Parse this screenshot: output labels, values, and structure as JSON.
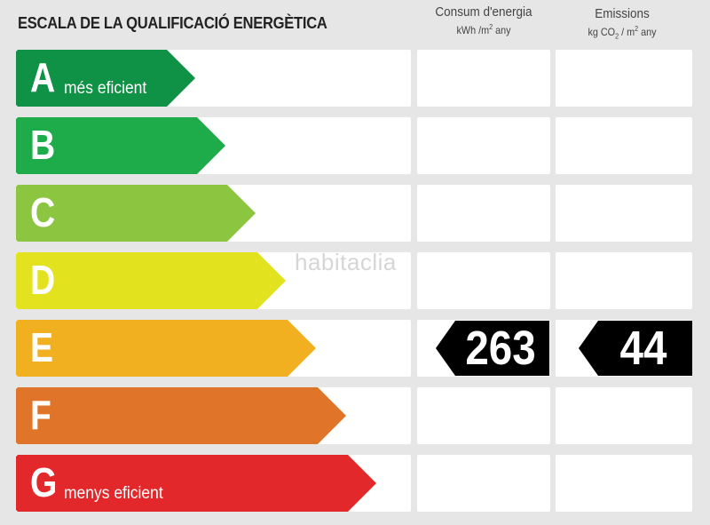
{
  "header": {
    "title": "ESCALA DE LA QUALIFICACIÓ ENERGÈTICA",
    "consumption_title": "Consum d'energia",
    "consumption_unit_pre": "kWh /m",
    "consumption_unit_sup": "2",
    "consumption_unit_post": " any",
    "emissions_title": "Emissions",
    "emissions_unit_pre": "kg CO",
    "emissions_unit_sub": "2",
    "emissions_unit_mid": " / m",
    "emissions_unit_sup": "2",
    "emissions_unit_post": " any"
  },
  "scale": [
    {
      "letter": "A",
      "desc": "més eficient",
      "color": "#0f9146"
    },
    {
      "letter": "B",
      "desc": "",
      "color": "#1eab4a"
    },
    {
      "letter": "C",
      "desc": "",
      "color": "#8cc540"
    },
    {
      "letter": "D",
      "desc": "",
      "color": "#e3e21f"
    },
    {
      "letter": "E",
      "desc": "",
      "color": "#f0b020"
    },
    {
      "letter": "F",
      "desc": "",
      "color": "#e0752a"
    },
    {
      "letter": "G",
      "desc": "menys eficient",
      "color": "#e2282a"
    }
  ],
  "rating": {
    "class": "E",
    "consumption_value": "263",
    "emissions_value": "44"
  },
  "watermark": "habitaclia"
}
